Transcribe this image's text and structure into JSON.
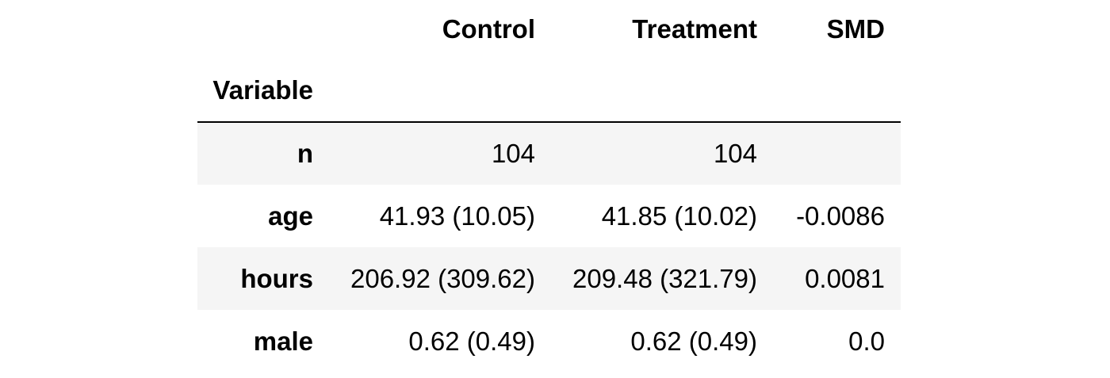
{
  "table": {
    "columns": [
      "Control",
      "Treatment",
      "SMD"
    ],
    "index_name": "Variable",
    "rows": [
      {
        "label": "n",
        "control": "104",
        "treatment": "104",
        "smd": ""
      },
      {
        "label": "age",
        "control": "41.93 (10.05)",
        "treatment": "41.85 (10.02)",
        "smd": "-0.0086"
      },
      {
        "label": "hours",
        "control": "206.92 (309.62)",
        "treatment": "209.48 (321.79)",
        "smd": "0.0081"
      },
      {
        "label": "male",
        "control": "0.62 (0.49)",
        "treatment": "0.62 (0.49)",
        "smd": "0.0"
      }
    ]
  }
}
